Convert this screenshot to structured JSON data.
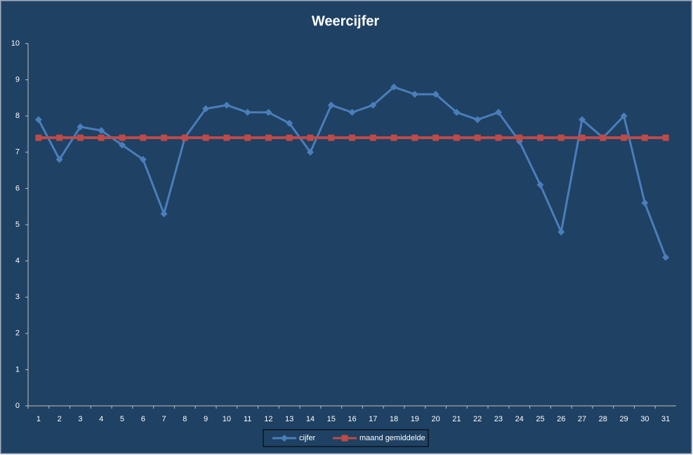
{
  "chart_data": {
    "type": "line",
    "title": "Weercijfer",
    "categories": [
      "1",
      "2",
      "3",
      "4",
      "5",
      "6",
      "7",
      "8",
      "9",
      "10",
      "11",
      "12",
      "13",
      "14",
      "15",
      "16",
      "17",
      "18",
      "19",
      "20",
      "21",
      "22",
      "23",
      "24",
      "25",
      "26",
      "27",
      "28",
      "29",
      "30",
      "31"
    ],
    "series": [
      {
        "name": "cijfer",
        "color": "#4a7ebb",
        "marker": "diamond",
        "values": [
          7.9,
          6.8,
          7.7,
          7.6,
          7.2,
          6.8,
          5.3,
          7.4,
          8.2,
          8.3,
          8.1,
          8.1,
          7.8,
          7.0,
          8.3,
          8.1,
          8.3,
          8.8,
          8.6,
          8.6,
          8.1,
          7.9,
          8.1,
          7.3,
          6.1,
          4.8,
          7.9,
          7.4,
          8.0,
          5.6,
          4.1
        ]
      },
      {
        "name": "maand gemiddelde",
        "color": "#be4b48",
        "marker": "square",
        "values": [
          7.4,
          7.4,
          7.4,
          7.4,
          7.4,
          7.4,
          7.4,
          7.4,
          7.4,
          7.4,
          7.4,
          7.4,
          7.4,
          7.4,
          7.4,
          7.4,
          7.4,
          7.4,
          7.4,
          7.4,
          7.4,
          7.4,
          7.4,
          7.4,
          7.4,
          7.4,
          7.4,
          7.4,
          7.4,
          7.4,
          7.4
        ]
      }
    ],
    "ylim": [
      0,
      10
    ],
    "yticks": [
      0,
      1,
      2,
      3,
      4,
      5,
      6,
      7,
      8,
      9,
      10
    ],
    "grid": false,
    "legend": "bottom"
  }
}
